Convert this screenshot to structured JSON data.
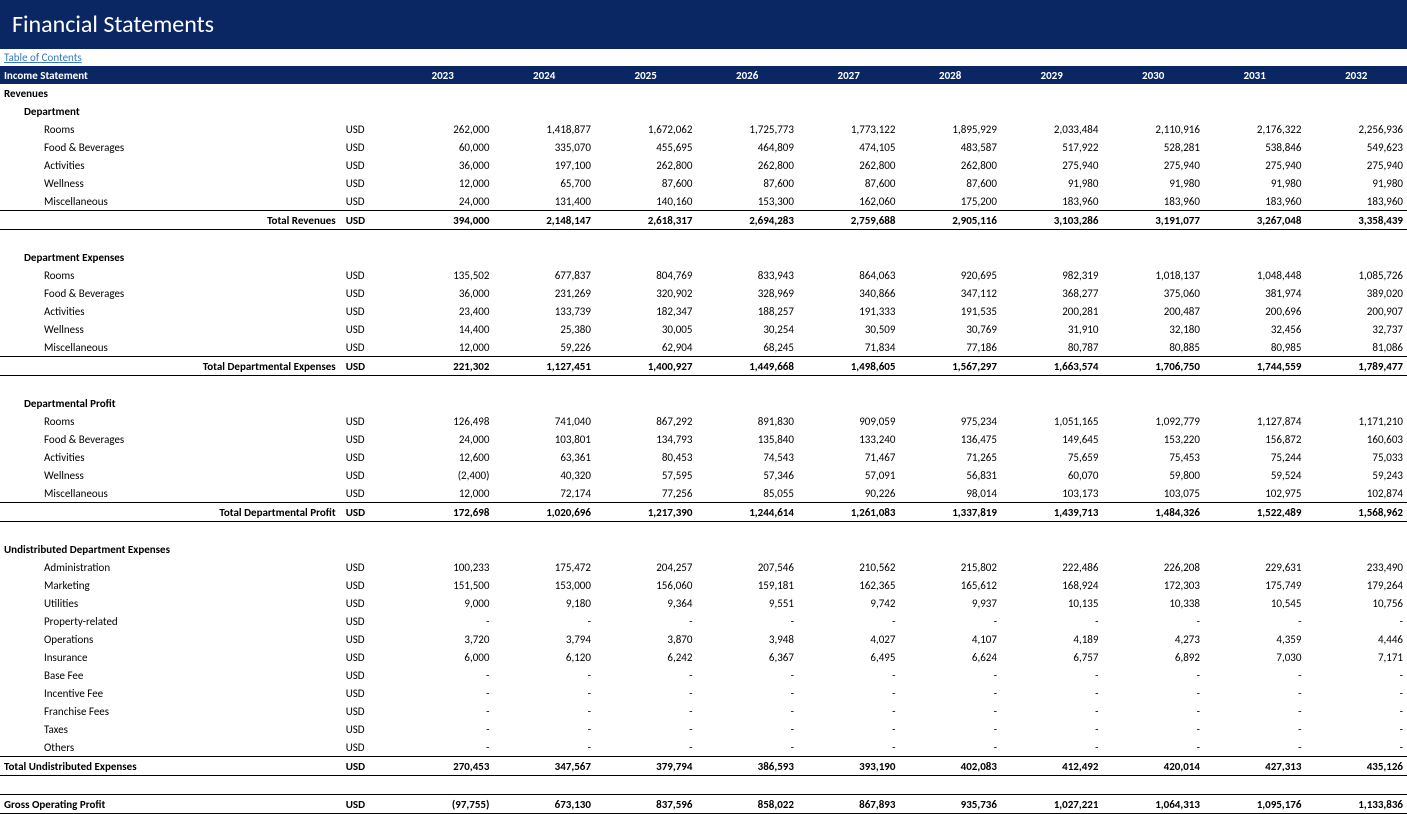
{
  "title": "Financial Statements",
  "toc": "Table of Contents",
  "header_label": "Income Statement",
  "unit": "USD",
  "years": [
    "2023",
    "2024",
    "2025",
    "2026",
    "2027",
    "2028",
    "2029",
    "2030",
    "2031",
    "2032"
  ],
  "dash": "-",
  "sections": {
    "revenues": {
      "title": "Revenues",
      "subhead": "Department",
      "rows": [
        {
          "label": "Rooms",
          "v": [
            "262,000",
            "1,418,877",
            "1,672,062",
            "1,725,773",
            "1,773,122",
            "1,895,929",
            "2,033,484",
            "2,110,916",
            "2,176,322",
            "2,256,936"
          ]
        },
        {
          "label": "Food & Beverages",
          "v": [
            "60,000",
            "335,070",
            "455,695",
            "464,809",
            "474,105",
            "483,587",
            "517,922",
            "528,281",
            "538,846",
            "549,623"
          ]
        },
        {
          "label": "Activities",
          "v": [
            "36,000",
            "197,100",
            "262,800",
            "262,800",
            "262,800",
            "262,800",
            "275,940",
            "275,940",
            "275,940",
            "275,940"
          ]
        },
        {
          "label": "Wellness",
          "v": [
            "12,000",
            "65,700",
            "87,600",
            "87,600",
            "87,600",
            "87,600",
            "91,980",
            "91,980",
            "91,980",
            "91,980"
          ]
        },
        {
          "label": "Miscellaneous",
          "v": [
            "24,000",
            "131,400",
            "140,160",
            "153,300",
            "162,060",
            "175,200",
            "183,960",
            "183,960",
            "183,960",
            "183,960"
          ]
        }
      ],
      "total": {
        "label": "Total Revenues",
        "v": [
          "394,000",
          "2,148,147",
          "2,618,317",
          "2,694,283",
          "2,759,688",
          "2,905,116",
          "3,103,286",
          "3,191,077",
          "3,267,048",
          "3,358,439"
        ]
      }
    },
    "dept_exp": {
      "subhead": "Department Expenses",
      "rows": [
        {
          "label": "Rooms",
          "v": [
            "135,502",
            "677,837",
            "804,769",
            "833,943",
            "864,063",
            "920,695",
            "982,319",
            "1,018,137",
            "1,048,448",
            "1,085,726"
          ]
        },
        {
          "label": "Food & Beverages",
          "v": [
            "36,000",
            "231,269",
            "320,902",
            "328,969",
            "340,866",
            "347,112",
            "368,277",
            "375,060",
            "381,974",
            "389,020"
          ]
        },
        {
          "label": "Activities",
          "v": [
            "23,400",
            "133,739",
            "182,347",
            "188,257",
            "191,333",
            "191,535",
            "200,281",
            "200,487",
            "200,696",
            "200,907"
          ]
        },
        {
          "label": "Wellness",
          "v": [
            "14,400",
            "25,380",
            "30,005",
            "30,254",
            "30,509",
            "30,769",
            "31,910",
            "32,180",
            "32,456",
            "32,737"
          ]
        },
        {
          "label": "Miscellaneous",
          "v": [
            "12,000",
            "59,226",
            "62,904",
            "68,245",
            "71,834",
            "77,186",
            "80,787",
            "80,885",
            "80,985",
            "81,086"
          ]
        }
      ],
      "total": {
        "label": "Total Departmental Expenses",
        "v": [
          "221,302",
          "1,127,451",
          "1,400,927",
          "1,449,668",
          "1,498,605",
          "1,567,297",
          "1,663,574",
          "1,706,750",
          "1,744,559",
          "1,789,477"
        ]
      }
    },
    "dept_profit": {
      "subhead": "Departmental Profit",
      "rows": [
        {
          "label": "Rooms",
          "v": [
            "126,498",
            "741,040",
            "867,292",
            "891,830",
            "909,059",
            "975,234",
            "1,051,165",
            "1,092,779",
            "1,127,874",
            "1,171,210"
          ]
        },
        {
          "label": "Food & Beverages",
          "v": [
            "24,000",
            "103,801",
            "134,793",
            "135,840",
            "133,240",
            "136,475",
            "149,645",
            "153,220",
            "156,872",
            "160,603"
          ]
        },
        {
          "label": "Activities",
          "v": [
            "12,600",
            "63,361",
            "80,453",
            "74,543",
            "71,467",
            "71,265",
            "75,659",
            "75,453",
            "75,244",
            "75,033"
          ]
        },
        {
          "label": "Wellness",
          "v": [
            "(2,400)",
            "40,320",
            "57,595",
            "57,346",
            "57,091",
            "56,831",
            "60,070",
            "59,800",
            "59,524",
            "59,243"
          ]
        },
        {
          "label": "Miscellaneous",
          "v": [
            "12,000",
            "72,174",
            "77,256",
            "85,055",
            "90,226",
            "98,014",
            "103,173",
            "103,075",
            "102,975",
            "102,874"
          ]
        }
      ],
      "total": {
        "label": "Total Departmental Profit",
        "v": [
          "172,698",
          "1,020,696",
          "1,217,390",
          "1,244,614",
          "1,261,083",
          "1,337,819",
          "1,439,713",
          "1,484,326",
          "1,522,489",
          "1,568,962"
        ]
      }
    },
    "undist": {
      "title": "Undistributed Department Expenses",
      "rows": [
        {
          "label": "Administration",
          "v": [
            "100,233",
            "175,472",
            "204,257",
            "207,546",
            "210,562",
            "215,802",
            "222,486",
            "226,208",
            "229,631",
            "233,490"
          ]
        },
        {
          "label": "Marketing",
          "v": [
            "151,500",
            "153,000",
            "156,060",
            "159,181",
            "162,365",
            "165,612",
            "168,924",
            "172,303",
            "175,749",
            "179,264"
          ]
        },
        {
          "label": "Utilities",
          "v": [
            "9,000",
            "9,180",
            "9,364",
            "9,551",
            "9,742",
            "9,937",
            "10,135",
            "10,338",
            "10,545",
            "10,756"
          ]
        },
        {
          "label": "Property-related",
          "dash": true
        },
        {
          "label": "Operations",
          "v": [
            "3,720",
            "3,794",
            "3,870",
            "3,948",
            "4,027",
            "4,107",
            "4,189",
            "4,273",
            "4,359",
            "4,446"
          ]
        },
        {
          "label": "Insurance",
          "v": [
            "6,000",
            "6,120",
            "6,242",
            "6,367",
            "6,495",
            "6,624",
            "6,757",
            "6,892",
            "7,030",
            "7,171"
          ]
        },
        {
          "label": "Base Fee",
          "dash": true
        },
        {
          "label": "Incentive Fee",
          "dash": true
        },
        {
          "label": "Franchise Fees",
          "dash": true
        },
        {
          "label": "Taxes",
          "dash": true
        },
        {
          "label": "Others",
          "dash": true
        }
      ],
      "total": {
        "label": "Total Undistributed Expenses",
        "v": [
          "270,453",
          "347,567",
          "379,794",
          "386,593",
          "393,190",
          "402,083",
          "412,492",
          "420,014",
          "427,313",
          "435,126"
        ]
      }
    },
    "gross": {
      "label": "Gross Operating Profit",
      "v": [
        "(97,755)",
        "673,130",
        "837,596",
        "858,022",
        "867,893",
        "935,736",
        "1,027,221",
        "1,064,313",
        "1,095,176",
        "1,133,836"
      ]
    }
  }
}
